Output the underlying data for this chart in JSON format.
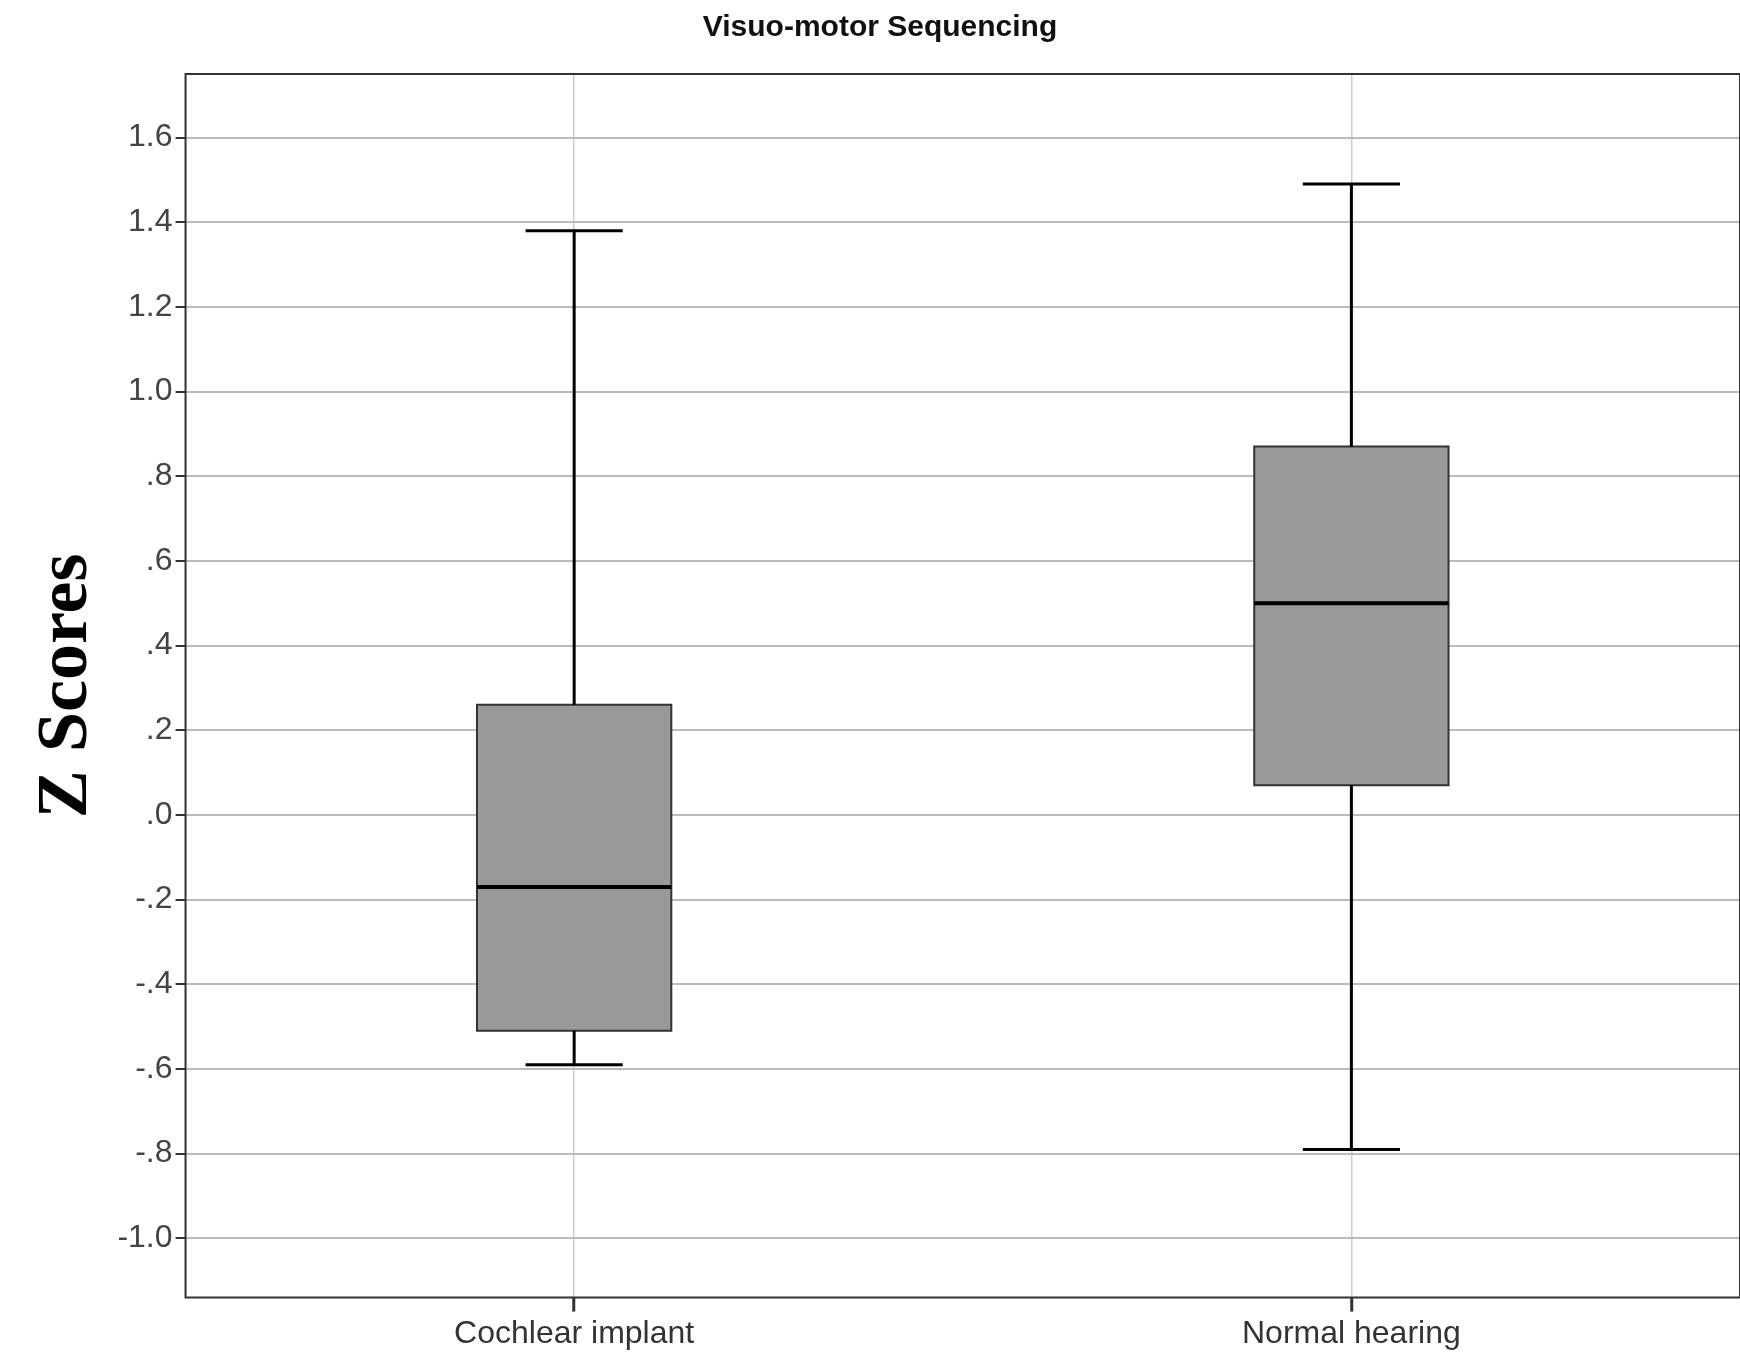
{
  "chart_data": {
    "type": "box",
    "title": "Visuo-motor Sequencing",
    "ylabel": "Z Scores",
    "categories": [
      "Cochlear implant",
      "Normal hearing"
    ],
    "color": "#999999",
    "boxes": [
      {
        "low": -0.59,
        "q1": -0.51,
        "median": -0.17,
        "q3": 0.26,
        "high": 1.38
      },
      {
        "low": -0.79,
        "q1": 0.07,
        "median": 0.5,
        "q3": 0.87,
        "high": 1.49
      }
    ],
    "ylim": [
      -1.14,
      1.75
    ],
    "yticks": [
      {
        "value": -1.0,
        "label": "-1.0"
      },
      {
        "value": -0.8,
        "label": "-.8"
      },
      {
        "value": -0.6,
        "label": "-.6"
      },
      {
        "value": -0.4,
        "label": "-.4"
      },
      {
        "value": -0.2,
        "label": "-.2"
      },
      {
        "value": 0,
        "label": ".0"
      },
      {
        "value": 0.2,
        "label": ".2"
      },
      {
        "value": 0.4,
        "label": ".4"
      },
      {
        "value": 0.6,
        "label": ".6"
      },
      {
        "value": 0.8,
        "label": ".8"
      },
      {
        "value": 1.0,
        "label": "1.0"
      },
      {
        "value": 1.2,
        "label": "1.2"
      },
      {
        "value": 1.4,
        "label": "1.4"
      },
      {
        "value": 1.6,
        "label": "1.6"
      }
    ],
    "grid": true
  }
}
